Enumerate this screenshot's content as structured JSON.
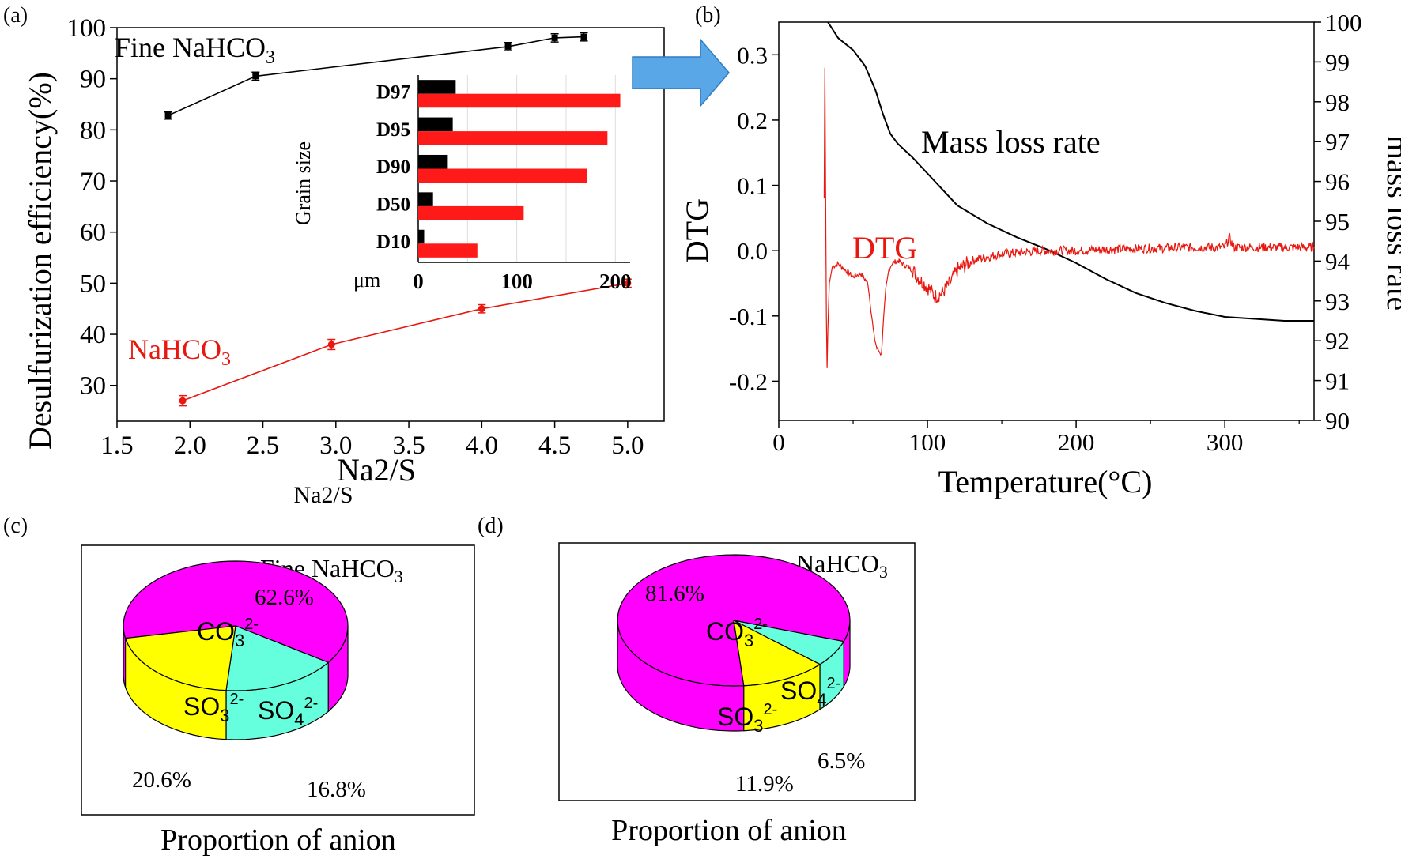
{
  "chart_data": [
    {
      "panel": "(a)",
      "type": "line",
      "xlabel": "Na2/S",
      "xlabel_sub": "Na2/S",
      "ylabel": "Desulfurization efficiency(%)",
      "xlim": [
        1.5,
        5.25
      ],
      "ylim": [
        23,
        100
      ],
      "xticks": [
        "1.5",
        "2.0",
        "2.5",
        "3.0",
        "3.5",
        "4.0",
        "4.5",
        "5.0"
      ],
      "yticks": [
        "30",
        "40",
        "50",
        "60",
        "70",
        "80",
        "90",
        "100"
      ],
      "series": [
        {
          "name": "Fine NaHCO",
          "name_sub": "3",
          "color": "#000000",
          "x": [
            1.85,
            2.45,
            4.18,
            4.5,
            4.7
          ],
          "y": [
            82.8,
            90.5,
            96.3,
            98.0,
            98.2
          ],
          "err": [
            0.7,
            0.8,
            0.8,
            0.8,
            0.8
          ]
        },
        {
          "name": "NaHCO",
          "name_sub": "3",
          "color": "#e8170f",
          "x": [
            1.95,
            2.97,
            4.0,
            5.0
          ],
          "y": [
            27.0,
            38.0,
            45.0,
            50.0
          ],
          "err": [
            1.0,
            1.0,
            0.8,
            0.8
          ]
        }
      ],
      "inset": {
        "type": "bar",
        "ylabel": "Grain size",
        "unit": "μm",
        "xlim": [
          0,
          215
        ],
        "xticks": [
          "0",
          "100",
          "200"
        ],
        "categories": [
          "D97",
          "D95",
          "D90",
          "D50",
          "D10"
        ],
        "series": [
          {
            "color": "#000000",
            "values": [
              38,
              35,
              30,
              15,
              6
            ]
          },
          {
            "color": "#ff1a1a",
            "values": [
              205,
              192,
              171,
              107,
              60
            ]
          }
        ]
      }
    },
    {
      "panel": "(b)",
      "type": "line",
      "xlabel": "Temperature(°C)",
      "ylabel_left": "DTG",
      "ylabel_right": "mass loss rate",
      "xlim": [
        0,
        360
      ],
      "ylim_left": [
        -0.26,
        0.35
      ],
      "ylim_right": [
        90,
        100
      ],
      "xticks": [
        "0",
        "100",
        "200",
        "300"
      ],
      "yticks_left": [
        "-0.2",
        "-0.1",
        "0.0",
        "0.1",
        "0.2",
        "0.3"
      ],
      "yticks_right": [
        "90",
        "91",
        "92",
        "93",
        "94",
        "95",
        "96",
        "97",
        "98",
        "99",
        "100"
      ],
      "series": [
        {
          "name": "Mass loss rate",
          "color": "#000000",
          "axis": "right",
          "x": [
            33,
            40,
            50,
            58,
            65,
            70,
            75,
            80,
            90,
            100,
            110,
            120,
            140,
            160,
            180,
            200,
            220,
            240,
            260,
            280,
            300,
            320,
            340,
            360
          ],
          "y": [
            100,
            99.6,
            99.3,
            98.9,
            98.3,
            97.7,
            97.2,
            96.95,
            96.6,
            96.2,
            95.8,
            95.4,
            94.95,
            94.6,
            94.3,
            93.95,
            93.55,
            93.2,
            92.95,
            92.75,
            92.6,
            92.55,
            92.5,
            92.5
          ]
        },
        {
          "name": "DTG",
          "color": "#e8170f",
          "axis": "left",
          "x": [
            30.5,
            31,
            31.5,
            32,
            32.5,
            33,
            34,
            36,
            40,
            45,
            50,
            55,
            60,
            62,
            64,
            66,
            68,
            69,
            70,
            72,
            74,
            76,
            80,
            90,
            95,
            100,
            105,
            110,
            115,
            120,
            130,
            140,
            150,
            160,
            180,
            200,
            220,
            240,
            260,
            280,
            300,
            303,
            306,
            320,
            340,
            360
          ],
          "y": [
            0.08,
            0.28,
            0.1,
            -0.1,
            -0.18,
            -0.12,
            -0.05,
            -0.025,
            -0.02,
            -0.03,
            -0.04,
            -0.035,
            -0.05,
            -0.09,
            -0.13,
            -0.15,
            -0.155,
            -0.16,
            -0.12,
            -0.06,
            -0.03,
            -0.02,
            -0.015,
            -0.03,
            -0.045,
            -0.055,
            -0.07,
            -0.065,
            -0.05,
            -0.03,
            -0.015,
            -0.01,
            -0.005,
            -0.003,
            0.0,
            0.0,
            0.002,
            0.003,
            0.004,
            0.005,
            0.005,
            0.02,
            0.005,
            0.005,
            0.005,
            0.005
          ]
        }
      ],
      "annotations": [
        "Mass loss rate",
        "DTG"
      ]
    },
    {
      "panel": "(c)",
      "type": "pie",
      "title": "Fine NaHCO",
      "title_sub": "3",
      "xlabel": "Proportion of anion",
      "slices": [
        {
          "label": "CO",
          "sub": "3",
          "sup": "2-",
          "value": 62.6,
          "pct": "62.6%",
          "color": "#ff00ff"
        },
        {
          "label": "SO",
          "sub": "4",
          "sup": "2-",
          "value": 16.8,
          "pct": "16.8%",
          "color": "#66ffdd"
        },
        {
          "label": "SO",
          "sub": "3",
          "sup": "2-",
          "value": 20.6,
          "pct": "20.6%",
          "color": "#ffff00"
        }
      ]
    },
    {
      "panel": "(d)",
      "type": "pie",
      "title": "NaHCO",
      "title_sub": "3",
      "xlabel": "Proportion of anion",
      "slices": [
        {
          "label": "CO",
          "sub": "3",
          "sup": "2-",
          "value": 81.6,
          "pct": "81.6%",
          "color": "#ff00ff"
        },
        {
          "label": "SO",
          "sub": "4",
          "sup": "2-",
          "value": 6.5,
          "pct": "6.5%",
          "color": "#66ffdd"
        },
        {
          "label": "SO",
          "sub": "3",
          "sup": "2-",
          "value": 11.9,
          "pct": "11.9%",
          "color": "#ffff00"
        }
      ]
    }
  ],
  "panel_labels": {
    "a": "(a)",
    "b": "(b)",
    "c": "(c)",
    "d": "(d)"
  }
}
